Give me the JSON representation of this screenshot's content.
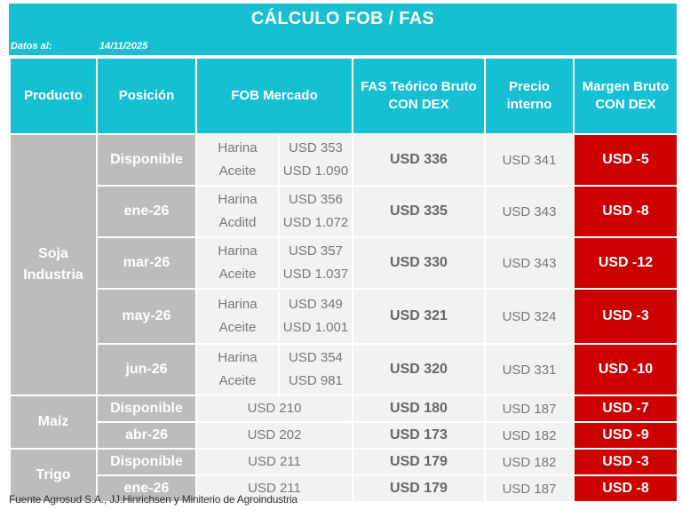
{
  "title": "CÁLCULO FOB / FAS",
  "date_label": "Datos al:",
  "date_value": "14/11/2025",
  "headers": {
    "producto": "Producto",
    "posicion": "Posición",
    "fob": "FOB Mercado",
    "fas_line1": "FAS Teórico Bruto",
    "fas_line2": "CON DEX",
    "precio_line1": "Precio",
    "precio_line2": "interno",
    "margen_line1": "Margen Bruto",
    "margen_line2": "CON DEX"
  },
  "soja": {
    "label_line1": "Soja",
    "label_line2": "Industria",
    "rows": [
      {
        "posicion": "Disponible",
        "sub1": "Harina",
        "val1": "USD 353",
        "sub2": "Aceite",
        "val2": "USD 1.090",
        "fas": "USD 336",
        "precio": "USD 341",
        "margen": "USD -5"
      },
      {
        "posicion": "ene-26",
        "sub1": "Harina",
        "val1": "USD 356",
        "sub2": "Acditd",
        "val2": "USD 1.072",
        "fas": "USD 335",
        "precio": "USD 343",
        "margen": "USD -8"
      },
      {
        "posicion": "mar-26",
        "sub1": "Harina",
        "val1": "USD 357",
        "sub2": "Aceite",
        "val2": "USD 1.037",
        "fas": "USD 330",
        "precio": "USD 343",
        "margen": "USD -12"
      },
      {
        "posicion": "may-26",
        "sub1": "Harina",
        "val1": "USD 349",
        "sub2": "Aceite",
        "val2": "USD 1.001",
        "fas": "USD 321",
        "precio": "USD 324",
        "margen": "USD -3"
      },
      {
        "posicion": "jun-26",
        "sub1": "Harina",
        "val1": "USD 354",
        "sub2": "Aceite",
        "val2": "USD 981",
        "fas": "USD 320",
        "precio": "USD 331",
        "margen": "USD -10"
      }
    ]
  },
  "maiz": {
    "label": "Maíz",
    "rows": [
      {
        "posicion": "Disponible",
        "fob": "USD 210",
        "fas": "USD 180",
        "precio": "USD 187",
        "margen": "USD -7"
      },
      {
        "posicion": "abr-26",
        "fob": "USD 202",
        "fas": "USD 173",
        "precio": "USD 182",
        "margen": "USD -9"
      }
    ]
  },
  "trigo": {
    "label": "Trigo",
    "rows": [
      {
        "posicion": "Disponible",
        "fob": "USD 211",
        "fas": "USD 179",
        "precio": "USD 182",
        "margen": "USD -3"
      },
      {
        "posicion": "ene-26",
        "fob": "USD 211",
        "fas": "USD 179",
        "precio": "USD 187",
        "margen": "USD -8"
      }
    ]
  },
  "footer": "Fuente Agrosud S.A., JJ.Hinrichsen y Miniterio de Agroindustria",
  "colors": {
    "accent": "#17bfd3",
    "label_gray": "#bcbcbc",
    "cell_bg": "#f2f2f2",
    "negative": "#cc0000"
  }
}
